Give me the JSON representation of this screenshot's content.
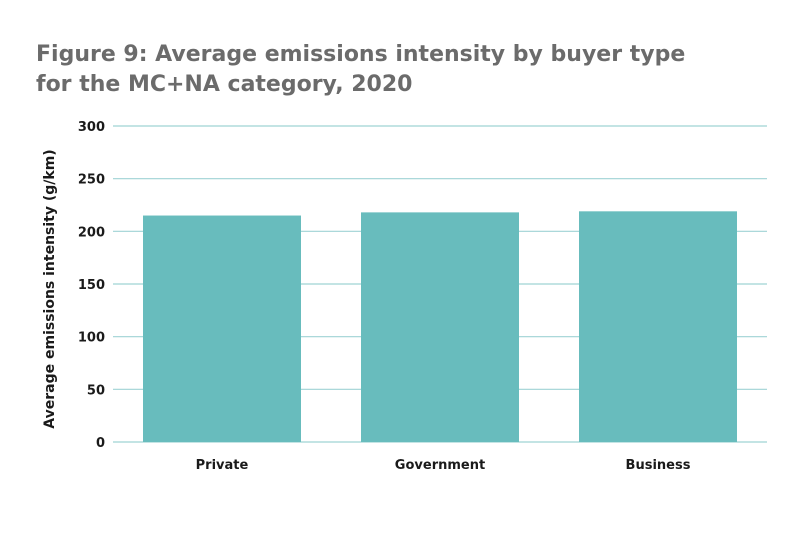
{
  "chart_data": {
    "type": "bar",
    "title_lines": [
      "Figure 9: Average emissions intensity by buyer type",
      "for the MC+NA category, 2020"
    ],
    "xlabel": "",
    "ylabel": "Average emissions intensity (g/km)",
    "categories": [
      "Private",
      "Government",
      "Business"
    ],
    "values": [
      215,
      218,
      219
    ],
    "ylim": [
      0,
      300
    ],
    "yticks": [
      "0",
      "50",
      "100",
      "150",
      "200",
      "250",
      "300"
    ],
    "grid": true,
    "legend": "none",
    "colors": {
      "bar": "#68bcbd",
      "grid": "#9fd3d4",
      "title": "#6b6b6b",
      "text": "#1a1a1a"
    }
  }
}
